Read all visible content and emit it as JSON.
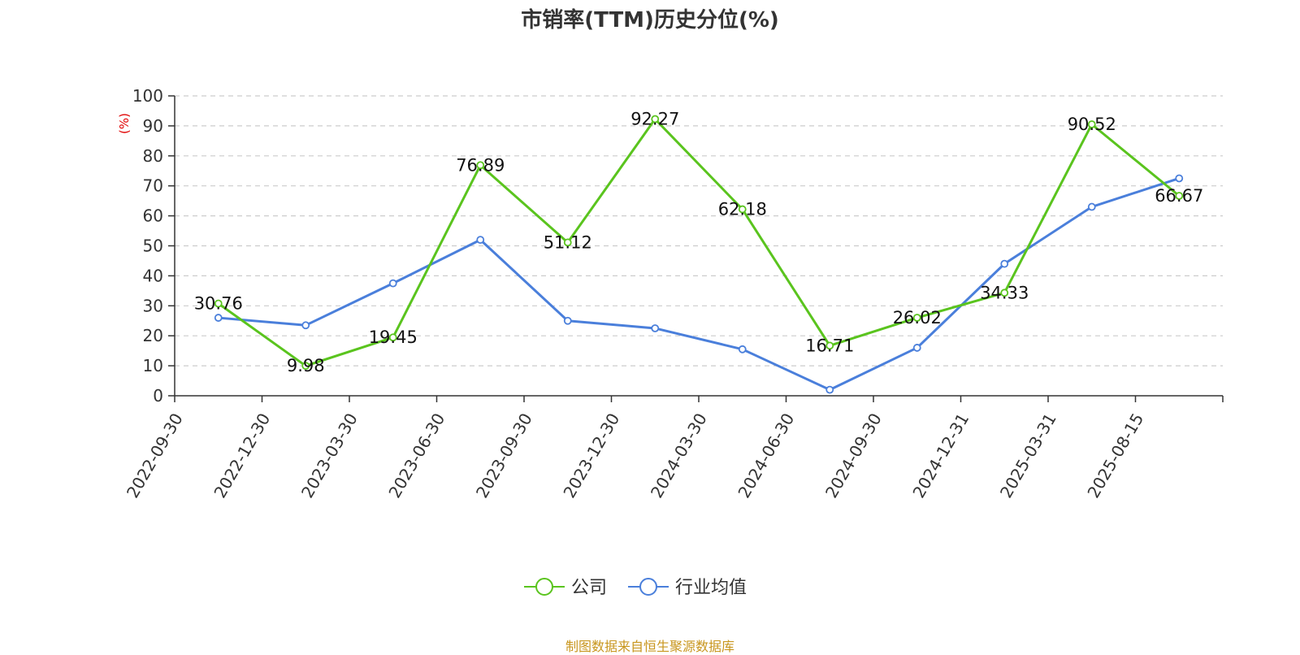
{
  "chart_data": {
    "type": "line",
    "title": "市销率(TTM)历史分位(%)",
    "ylabel": "(%)",
    "xlabel": "",
    "ylim": [
      0,
      100
    ],
    "yticks": [
      0,
      10,
      20,
      30,
      40,
      50,
      60,
      70,
      80,
      90,
      100
    ],
    "grid": true,
    "legend_position": "bottom",
    "categories": [
      "2022-09-30",
      "2022-12-30",
      "2023-03-30",
      "2023-06-30",
      "2023-09-30",
      "2023-12-30",
      "2024-03-30",
      "2024-06-30",
      "2024-09-30",
      "2024-12-31",
      "2025-03-31",
      "2025-08-15"
    ],
    "series": [
      {
        "name": "公司",
        "color": "#5ac41e",
        "values": [
          30.76,
          9.98,
          19.45,
          76.89,
          51.12,
          92.27,
          62.18,
          16.71,
          26.02,
          34.33,
          90.52,
          66.67
        ],
        "show_labels": true
      },
      {
        "name": "行业均值",
        "color": "#4a7fdb",
        "values": [
          26,
          23.5,
          37.5,
          52,
          25,
          22.5,
          15.5,
          2,
          16,
          44,
          63,
          72.5
        ],
        "show_labels": false
      }
    ]
  },
  "footer": "制图数据来自恒生聚源数据库"
}
